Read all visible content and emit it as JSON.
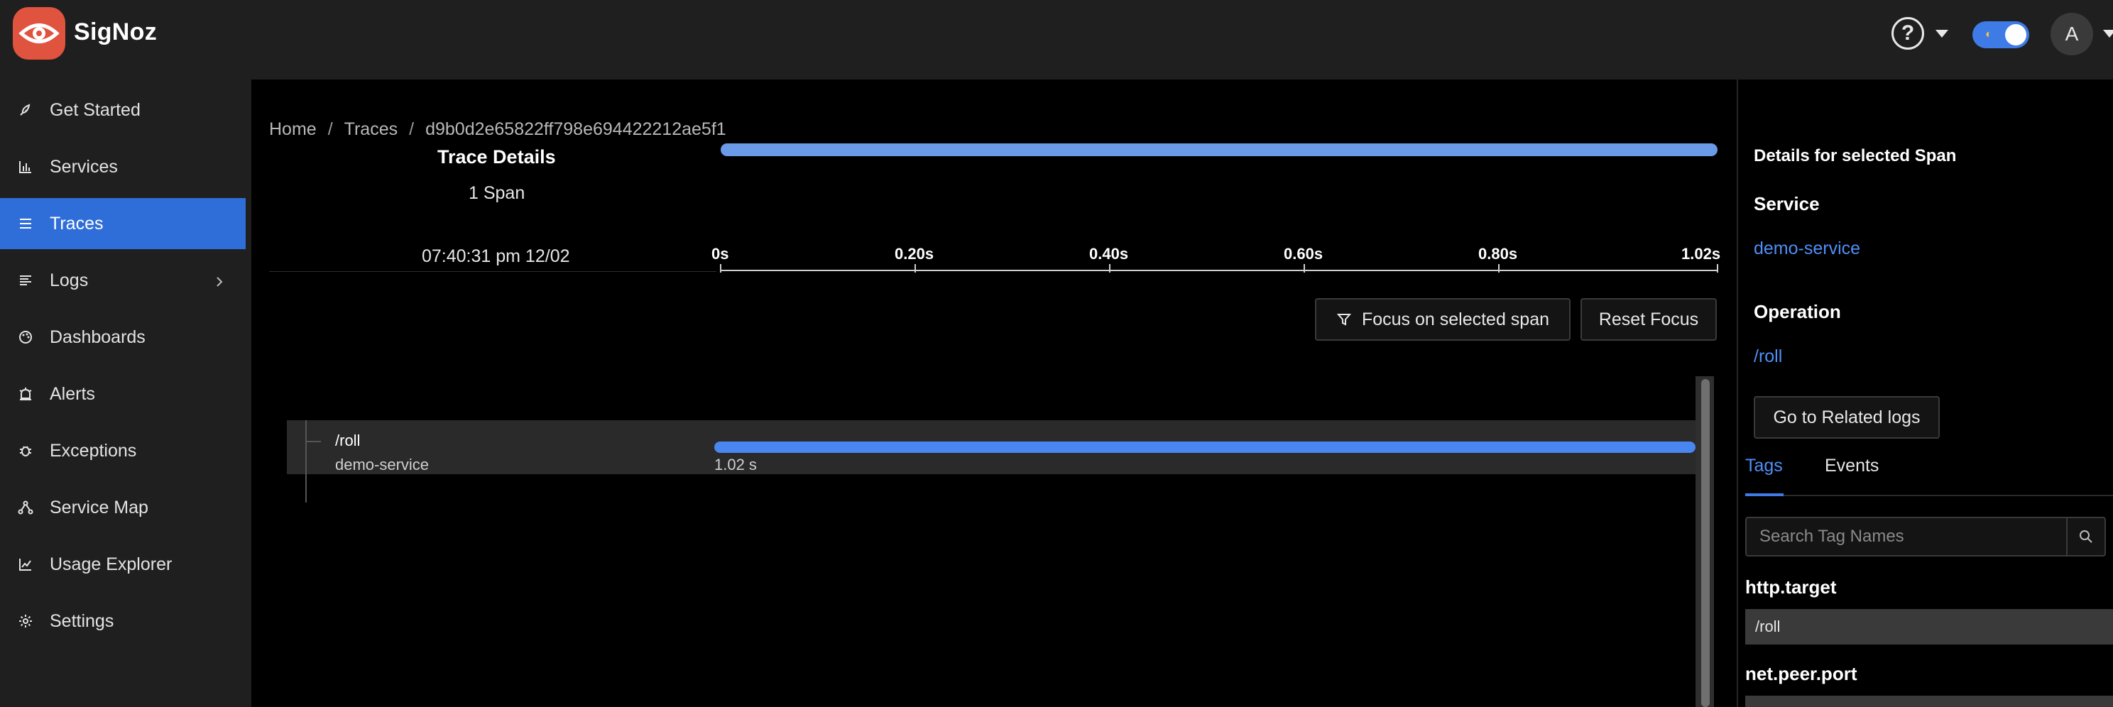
{
  "app": {
    "brand": "SigNoz",
    "avatar_initial": "A",
    "colors": {
      "accent": "#3e7be6",
      "logo": "#e0533f",
      "link": "#4f8ff7",
      "span_bar": "#4a86f0"
    }
  },
  "sidebar": {
    "items": [
      {
        "label": "Get Started",
        "icon": "rocket-icon"
      },
      {
        "label": "Services",
        "icon": "bar-chart-icon"
      },
      {
        "label": "Traces",
        "icon": "menu-lines-icon",
        "active": true
      },
      {
        "label": "Logs",
        "icon": "logs-icon",
        "has_submenu": true
      },
      {
        "label": "Dashboards",
        "icon": "palette-icon"
      },
      {
        "label": "Alerts",
        "icon": "alarm-icon"
      },
      {
        "label": "Exceptions",
        "icon": "bug-icon"
      },
      {
        "label": "Service Map",
        "icon": "network-icon"
      },
      {
        "label": "Usage Explorer",
        "icon": "line-chart-icon"
      },
      {
        "label": "Settings",
        "icon": "gear-icon"
      }
    ]
  },
  "breadcrumb": {
    "items": [
      "Home",
      "Traces",
      "d9b0d2e65822ff798e694422212ae5f1"
    ],
    "separator": "/"
  },
  "trace": {
    "title": "Trace Details",
    "span_count": "1 Span",
    "start_time": "07:40:31 pm 12/02",
    "ticks": [
      "0s",
      "0.20s",
      "0.40s",
      "0.60s",
      "0.80s",
      "1.02s"
    ],
    "total_duration_s": 1.02
  },
  "actions": {
    "focus_label": "Focus on selected span",
    "reset_label": "Reset Focus"
  },
  "spans": [
    {
      "operation": "/roll",
      "service": "demo-service",
      "duration": "1.02 s",
      "start_fraction": 0,
      "length_fraction": 1
    }
  ],
  "panel": {
    "title": "Details for selected Span",
    "service_heading": "Service",
    "service_value": "demo-service",
    "operation_heading": "Operation",
    "operation_value": "/roll",
    "related_logs_label": "Go to Related logs",
    "tabs": [
      "Tags",
      "Events"
    ],
    "active_tab": "Tags",
    "search_placeholder": "Search Tag Names",
    "tags": [
      {
        "key": "http.target",
        "value": "/roll"
      },
      {
        "key": "net.peer.port",
        "value": ""
      }
    ]
  }
}
